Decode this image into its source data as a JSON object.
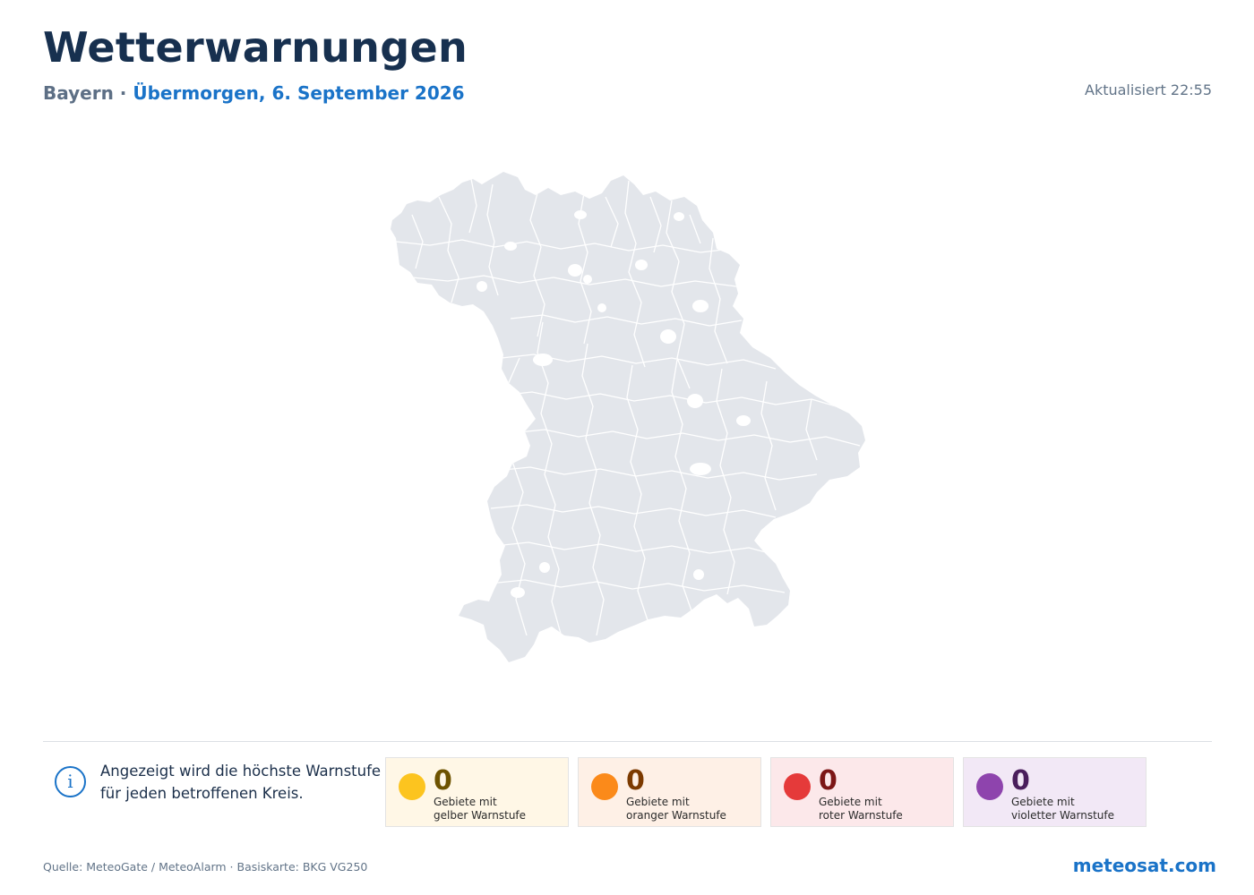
{
  "header": {
    "title": "Wetterwarnungen",
    "region": "Bayern",
    "separator": "·",
    "date": "Übermorgen, 6. September 2026",
    "updated": "Aktualisiert 22:55"
  },
  "info": {
    "icon": "info-icon",
    "text": "Angezeigt wird die höchste Warnstufe für jeden betroffenen Kreis."
  },
  "legend": [
    {
      "count": "0",
      "line1": "Gebiete mit",
      "line2": "gelber Warnstufe",
      "dot": "#fcc41f",
      "bg": "#fff7e6",
      "num": "#6e5300"
    },
    {
      "count": "0",
      "line1": "Gebiete mit",
      "line2": "oranger Warnstufe",
      "dot": "#fb8a1a",
      "bg": "#fef0e6",
      "num": "#7c3a00"
    },
    {
      "count": "0",
      "line1": "Gebiete mit",
      "line2": "roter Warnstufe",
      "dot": "#e53a3a",
      "bg": "#fce8ea",
      "num": "#7c1616"
    },
    {
      "count": "0",
      "line1": "Gebiete mit",
      "line2": "violetter Warnstufe",
      "dot": "#8e44ad",
      "bg": "#f2e8f6",
      "num": "#4a1e5c"
    }
  ],
  "footer": {
    "source": "Quelle: MeteoGate / MeteoAlarm · Basiskarte: BKG VG250",
    "brand": "meteosat.com"
  },
  "map_colors": {
    "fill": "#e3e6eb",
    "border": "#ffffff"
  }
}
